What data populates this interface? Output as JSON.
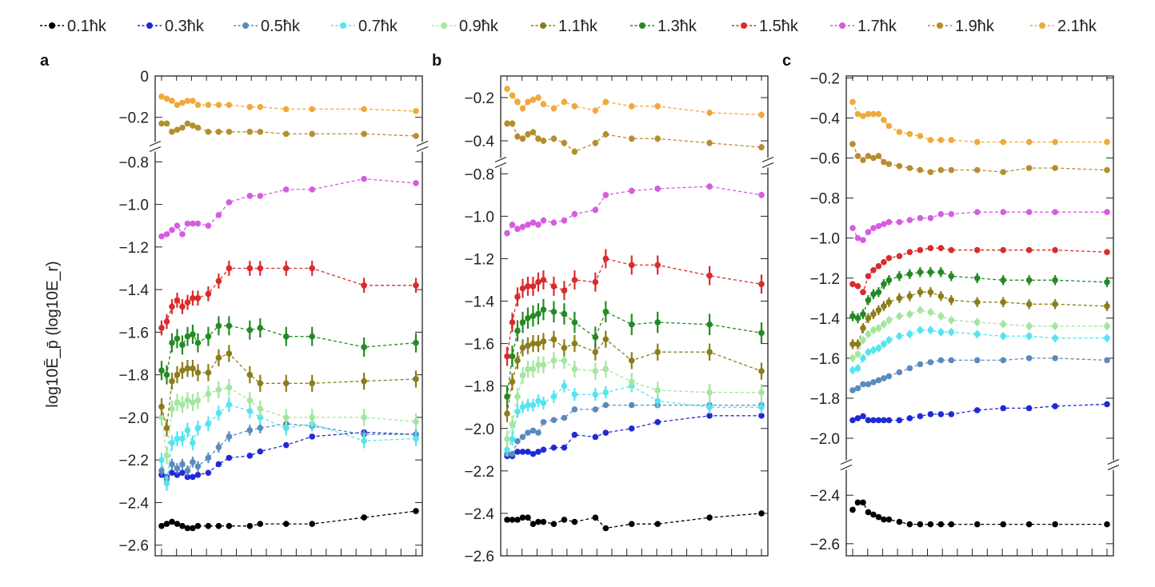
{
  "chart_data": {
    "type": "line",
    "legend_placement": "top",
    "ylabel": "log10Ē_p̄ (log10E_r)",
    "legend_hbar_k": "ħk",
    "series_names": [
      "0.1ħk",
      "0.3ħk",
      "0.5ħk",
      "0.7ħk",
      "0.9ħk",
      "1.1ħk",
      "1.3ħk",
      "1.5ħk",
      "1.7ħk",
      "1.9ħk",
      "2.1ħk"
    ],
    "series_colors": [
      "#000000",
      "#1f2ad6",
      "#5b8bbd",
      "#55e4f0",
      "#a4e6a0",
      "#8b7d1c",
      "#258a25",
      "#d92c2c",
      "#d55de0",
      "#b58e2e",
      "#f0a93a"
    ],
    "error_bars": true,
    "axis_breaks": true,
    "x_tick_count": 18,
    "panels": [
      {
        "label": "a",
        "x": [
          1,
          2,
          3,
          4,
          5,
          6,
          7,
          8,
          10,
          12,
          14,
          18,
          20,
          25,
          30,
          40,
          50
        ],
        "segments": [
          {
            "ylim": [
              -2.65,
              -0.78
            ],
            "ticks": [
              -0.8,
              -1.0,
              -1.2,
              -1.4,
              -1.6,
              -1.8,
              -2.0,
              -2.2,
              -2.4,
              -2.6
            ]
          },
          {
            "ylim": [
              -0.29,
              0.0
            ],
            "ticks": [
              0,
              -0.2
            ]
          }
        ],
        "series": [
          {
            "values": [
              -2.51,
              -2.5,
              -2.49,
              -2.5,
              -2.51,
              -2.52,
              -2.52,
              -2.51,
              -2.51,
              -2.51,
              -2.51,
              -2.51,
              -2.5,
              -2.5,
              -2.5,
              -2.47,
              -2.44
            ],
            "err": 0.01
          },
          {
            "values": [
              -2.27,
              -2.28,
              -2.26,
              -2.27,
              -2.26,
              -2.28,
              -2.28,
              -2.27,
              -2.26,
              -2.22,
              -2.19,
              -2.18,
              -2.16,
              -2.13,
              -2.09,
              -2.07,
              -2.08
            ],
            "err": 0.01
          },
          {
            "values": [
              -2.25,
              -2.29,
              -2.22,
              -2.24,
              -2.22,
              -2.25,
              -2.21,
              -2.23,
              -2.19,
              -2.14,
              -2.09,
              -2.06,
              -2.05,
              -2.03,
              -2.04,
              -2.08,
              -2.08
            ],
            "err": 0.025
          },
          {
            "values": [
              -2.2,
              -2.31,
              -2.12,
              -2.1,
              -2.1,
              -2.06,
              -2.12,
              -2.05,
              -2.03,
              -1.98,
              -1.94,
              -1.97,
              -2.0,
              -2.05,
              -2.03,
              -2.11,
              -2.1
            ],
            "err": 0.035
          },
          {
            "values": [
              -2.0,
              -2.18,
              -1.96,
              -1.93,
              -1.94,
              -1.92,
              -1.93,
              -1.92,
              -1.89,
              -1.87,
              -1.86,
              -1.92,
              -1.96,
              -2.0,
              -2.0,
              -2.0,
              -2.02
            ],
            "err": 0.04
          },
          {
            "values": [
              -1.95,
              -2.05,
              -1.83,
              -1.8,
              -1.78,
              -1.77,
              -1.77,
              -1.79,
              -1.79,
              -1.72,
              -1.7,
              -1.8,
              -1.84,
              -1.84,
              -1.84,
              -1.83,
              -1.82
            ],
            "err": 0.04
          },
          {
            "values": [
              -1.78,
              -1.8,
              -1.65,
              -1.63,
              -1.66,
              -1.62,
              -1.61,
              -1.65,
              -1.62,
              -1.57,
              -1.57,
              -1.59,
              -1.58,
              -1.62,
              -1.62,
              -1.67,
              -1.65
            ],
            "err": 0.045
          },
          {
            "values": [
              -1.58,
              -1.55,
              -1.48,
              -1.45,
              -1.48,
              -1.46,
              -1.44,
              -1.44,
              -1.42,
              -1.36,
              -1.3,
              -1.3,
              -1.3,
              -1.3,
              -1.3,
              -1.38,
              -1.38
            ],
            "err": 0.035
          },
          {
            "values": [
              -1.15,
              -1.14,
              -1.12,
              -1.1,
              -1.14,
              -1.09,
              -1.09,
              -1.09,
              -1.1,
              -1.05,
              -0.99,
              -0.96,
              -0.96,
              -0.93,
              -0.93,
              -0.88,
              -0.9
            ],
            "err": 0.01
          }
        ],
        "upper_series": [
          {
            "values": [
              -0.23,
              -0.23,
              -0.27,
              -0.26,
              -0.25,
              -0.23,
              -0.24,
              -0.25,
              -0.27,
              -0.27,
              -0.27,
              -0.27,
              -0.27,
              -0.28,
              -0.28,
              -0.28,
              -0.29
            ],
            "err": 0.01
          },
          {
            "values": [
              -0.1,
              -0.11,
              -0.12,
              -0.14,
              -0.13,
              -0.12,
              -0.12,
              -0.14,
              -0.14,
              -0.14,
              -0.14,
              -0.15,
              -0.15,
              -0.16,
              -0.16,
              -0.16,
              -0.17
            ],
            "err": 0.01
          }
        ]
      },
      {
        "label": "b",
        "x": [
          1,
          2,
          3,
          4,
          5,
          6,
          7,
          8,
          10,
          12,
          14,
          18,
          20,
          25,
          30,
          40,
          50
        ],
        "segments": [
          {
            "ylim": [
              -2.6,
              -0.78
            ],
            "ticks": [
              -0.8,
              -1.0,
              -1.2,
              -1.4,
              -1.6,
              -1.8,
              -2.0,
              -2.2,
              -2.4,
              -2.6
            ]
          },
          {
            "ylim": [
              -0.47,
              -0.1
            ],
            "ticks": [
              -0.2,
              -0.4
            ]
          }
        ],
        "series": [
          {
            "values": [
              -2.43,
              -2.43,
              -2.43,
              -2.42,
              -2.42,
              -2.45,
              -2.44,
              -2.44,
              -2.45,
              -2.43,
              -2.44,
              -2.42,
              -2.47,
              -2.45,
              -2.45,
              -2.42,
              -2.4
            ],
            "err": 0.01
          },
          {
            "values": [
              -2.13,
              -2.13,
              -2.11,
              -2.11,
              -2.11,
              -2.12,
              -2.11,
              -2.1,
              -2.09,
              -2.09,
              -2.03,
              -2.04,
              -2.02,
              -2.0,
              -1.97,
              -1.94,
              -1.94
            ],
            "err": 0.01
          },
          {
            "values": [
              -2.12,
              -2.12,
              -2.06,
              -2.04,
              -2.02,
              -2.01,
              -2.02,
              -1.97,
              -1.96,
              -1.95,
              -1.91,
              -1.91,
              -1.89,
              -1.89,
              -1.89,
              -1.89,
              -1.89
            ],
            "err": 0.01
          },
          {
            "values": [
              -2.1,
              -2.05,
              -1.92,
              -1.9,
              -1.89,
              -1.89,
              -1.87,
              -1.88,
              -1.85,
              -1.8,
              -1.84,
              -1.84,
              -1.83,
              -1.8,
              -1.87,
              -1.9,
              -1.9
            ],
            "err": 0.03
          },
          {
            "values": [
              -2.05,
              -1.98,
              -1.85,
              -1.75,
              -1.72,
              -1.72,
              -1.7,
              -1.7,
              -1.68,
              -1.68,
              -1.72,
              -1.73,
              -1.72,
              -1.78,
              -1.82,
              -1.83,
              -1.83
            ],
            "err": 0.04
          },
          {
            "values": [
              -1.93,
              -1.78,
              -1.68,
              -1.62,
              -1.61,
              -1.6,
              -1.6,
              -1.59,
              -1.58,
              -1.62,
              -1.6,
              -1.64,
              -1.58,
              -1.68,
              -1.64,
              -1.64,
              -1.73
            ],
            "err": 0.04
          },
          {
            "values": [
              -1.85,
              -1.66,
              -1.54,
              -1.5,
              -1.48,
              -1.47,
              -1.46,
              -1.44,
              -1.45,
              -1.46,
              -1.5,
              -1.57,
              -1.45,
              -1.51,
              -1.5,
              -1.51,
              -1.55
            ],
            "err": 0.05
          },
          {
            "values": [
              -1.66,
              -1.5,
              -1.38,
              -1.34,
              -1.33,
              -1.33,
              -1.31,
              -1.3,
              -1.33,
              -1.35,
              -1.3,
              -1.31,
              -1.2,
              -1.23,
              -1.23,
              -1.28,
              -1.32
            ],
            "err": 0.045
          },
          {
            "values": [
              -1.08,
              -1.04,
              -1.06,
              -1.05,
              -1.04,
              -1.03,
              -1.04,
              -1.02,
              -1.03,
              -1.02,
              -0.99,
              -0.97,
              -0.9,
              -0.88,
              -0.87,
              -0.86,
              -0.9
            ],
            "err": 0.015
          }
        ],
        "upper_series": [
          {
            "values": [
              -0.32,
              -0.32,
              -0.38,
              -0.39,
              -0.37,
              -0.36,
              -0.39,
              -0.4,
              -0.39,
              -0.41,
              -0.45,
              -0.41,
              -0.37,
              -0.39,
              -0.39,
              -0.41,
              -0.43
            ],
            "err": 0.015
          },
          {
            "values": [
              -0.16,
              -0.19,
              -0.22,
              -0.25,
              -0.22,
              -0.21,
              -0.2,
              -0.23,
              -0.25,
              -0.22,
              -0.24,
              -0.26,
              -0.22,
              -0.24,
              -0.24,
              -0.27,
              -0.28
            ],
            "err": 0.015
          }
        ]
      },
      {
        "label": "c",
        "x": [
          1,
          2,
          3,
          4,
          5,
          6,
          7,
          8,
          10,
          12,
          14,
          16,
          18,
          20,
          25,
          30,
          35,
          40,
          50
        ],
        "segments": [
          {
            "ylim": [
              -2.65,
              -2.32
            ],
            "ticks": [
              -2.4,
              -2.6
            ]
          },
          {
            "ylim": [
              -2.08,
              -0.19
            ],
            "ticks": [
              -0.2,
              -0.4,
              -0.6,
              -0.8,
              -1.0,
              -1.2,
              -1.4,
              -1.6,
              -1.8,
              -2.0
            ]
          }
        ],
        "lower_series": [
          {
            "values": [
              -2.46,
              -2.43,
              -2.43,
              -2.47,
              -2.48,
              -2.49,
              -2.5,
              -2.5,
              -2.51,
              -2.52,
              -2.52,
              -2.52,
              -2.52,
              -2.52,
              -2.52,
              -2.52,
              -2.52,
              -2.52,
              -2.52
            ],
            "err": 0.005
          }
        ],
        "series": [
          {
            "values": [
              -1.91,
              -1.9,
              -1.89,
              -1.91,
              -1.91,
              -1.91,
              -1.91,
              -1.91,
              -1.91,
              -1.9,
              -1.89,
              -1.88,
              -1.88,
              -1.88,
              -1.86,
              -1.85,
              -1.85,
              -1.84,
              -1.83
            ],
            "err": 0.005
          },
          {
            "values": [
              -1.76,
              -1.75,
              -1.73,
              -1.73,
              -1.72,
              -1.71,
              -1.7,
              -1.69,
              -1.67,
              -1.65,
              -1.63,
              -1.62,
              -1.61,
              -1.61,
              -1.61,
              -1.61,
              -1.6,
              -1.6,
              -1.61
            ],
            "err": 0.01
          },
          {
            "values": [
              -1.66,
              -1.65,
              -1.6,
              -1.57,
              -1.56,
              -1.55,
              -1.53,
              -1.51,
              -1.49,
              -1.48,
              -1.46,
              -1.46,
              -1.47,
              -1.47,
              -1.48,
              -1.49,
              -1.49,
              -1.5,
              -1.5
            ],
            "err": 0.02
          },
          {
            "values": [
              -1.6,
              -1.58,
              -1.51,
              -1.48,
              -1.46,
              -1.45,
              -1.43,
              -1.41,
              -1.39,
              -1.38,
              -1.36,
              -1.37,
              -1.39,
              -1.41,
              -1.42,
              -1.43,
              -1.44,
              -1.44,
              -1.44
            ],
            "err": 0.02
          },
          {
            "values": [
              -1.53,
              -1.53,
              -1.45,
              -1.4,
              -1.38,
              -1.36,
              -1.34,
              -1.32,
              -1.3,
              -1.29,
              -1.27,
              -1.27,
              -1.29,
              -1.31,
              -1.32,
              -1.32,
              -1.33,
              -1.33,
              -1.34
            ],
            "err": 0.025
          },
          {
            "values": [
              -1.39,
              -1.4,
              -1.38,
              -1.31,
              -1.28,
              -1.27,
              -1.23,
              -1.21,
              -1.19,
              -1.18,
              -1.17,
              -1.17,
              -1.17,
              -1.19,
              -1.2,
              -1.21,
              -1.21,
              -1.21,
              -1.22
            ],
            "err": 0.025
          },
          {
            "values": [
              -1.23,
              -1.24,
              -1.27,
              -1.19,
              -1.16,
              -1.14,
              -1.12,
              -1.1,
              -1.09,
              -1.07,
              -1.06,
              -1.05,
              -1.05,
              -1.06,
              -1.06,
              -1.06,
              -1.06,
              -1.06,
              -1.07
            ],
            "err": 0.015
          },
          {
            "values": [
              -0.95,
              -1.0,
              -1.01,
              -0.97,
              -0.95,
              -0.94,
              -0.93,
              -0.92,
              -0.92,
              -0.91,
              -0.9,
              -0.9,
              -0.88,
              -0.88,
              -0.87,
              -0.87,
              -0.87,
              -0.87,
              -0.87
            ],
            "err": 0.01
          },
          {
            "values": [
              -0.53,
              -0.59,
              -0.61,
              -0.59,
              -0.6,
              -0.59,
              -0.62,
              -0.63,
              -0.64,
              -0.65,
              -0.66,
              -0.67,
              -0.66,
              -0.66,
              -0.66,
              -0.67,
              -0.65,
              -0.65,
              -0.66
            ],
            "err": 0.01
          },
          {
            "values": [
              -0.32,
              -0.38,
              -0.39,
              -0.38,
              -0.38,
              -0.38,
              -0.41,
              -0.44,
              -0.47,
              -0.48,
              -0.49,
              -0.51,
              -0.51,
              -0.51,
              -0.52,
              -0.52,
              -0.52,
              -0.52,
              -0.52
            ],
            "err": 0.01
          }
        ]
      }
    ]
  }
}
